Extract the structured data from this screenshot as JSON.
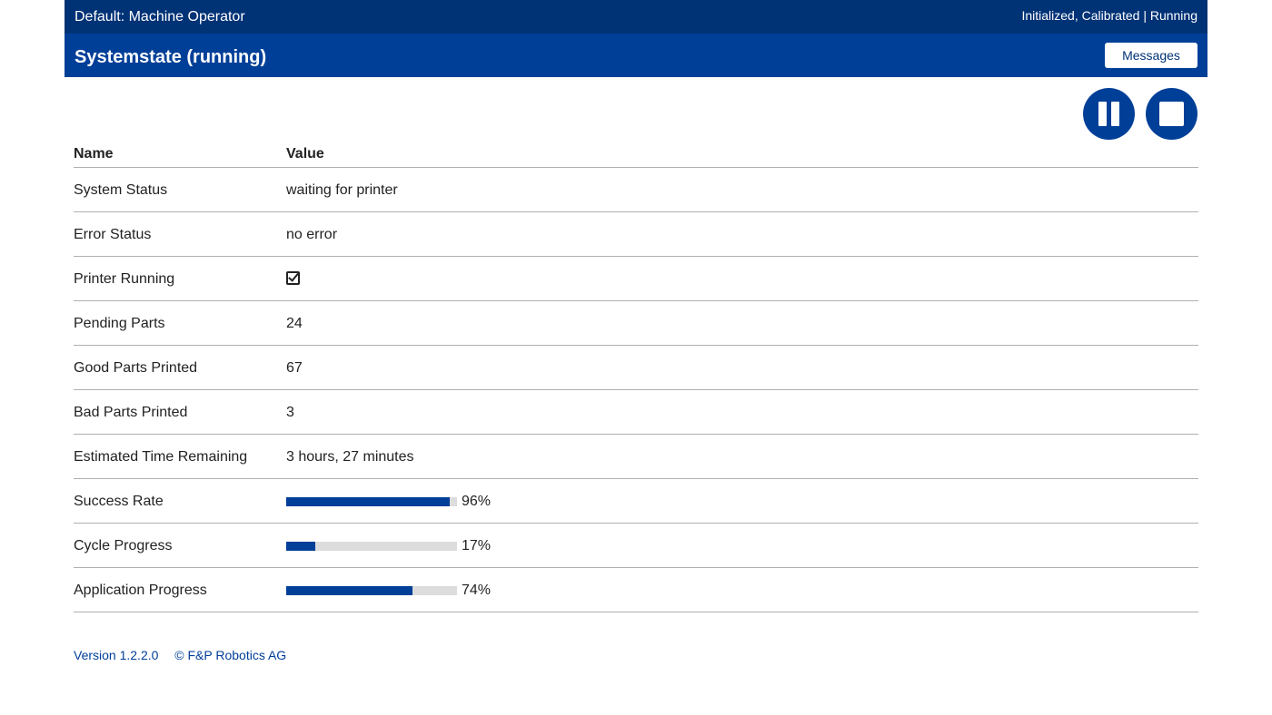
{
  "header": {
    "role": "Default: Machine Operator",
    "status": "Initialized, Calibrated | Running",
    "title": "Systemstate (running)",
    "messages_label": "Messages"
  },
  "controls": {
    "pause_icon": "pause-icon",
    "stop_icon": "stop-icon"
  },
  "table": {
    "col_name": "Name",
    "col_value": "Value",
    "rows": [
      {
        "name": "System Status",
        "value": "waiting for printer"
      },
      {
        "name": "Error Status",
        "value": "no error"
      },
      {
        "name": "Printer Running",
        "value_icon": "checkbox-checked-icon",
        "checked": true
      },
      {
        "name": "Pending Parts",
        "value": "24"
      },
      {
        "name": "Good Parts Printed",
        "value": "67"
      },
      {
        "name": "Bad Parts Printed",
        "value": "3"
      },
      {
        "name": "Estimated Time Remaining",
        "value": "3 hours, 27 minutes"
      },
      {
        "name": "Success Rate",
        "progress": 96,
        "label": "96%"
      },
      {
        "name": "Cycle Progress",
        "progress": 17,
        "label": "17%"
      },
      {
        "name": "Application Progress",
        "progress": 74,
        "label": "74%"
      }
    ]
  },
  "footer": {
    "version": "Version 1.2.2.0",
    "copyright": "© F&P Robotics AG"
  },
  "colors": {
    "topbar": "#003276",
    "titlebar": "#003f98",
    "accent": "#003f98",
    "progress_track": "#dcdcdc"
  }
}
